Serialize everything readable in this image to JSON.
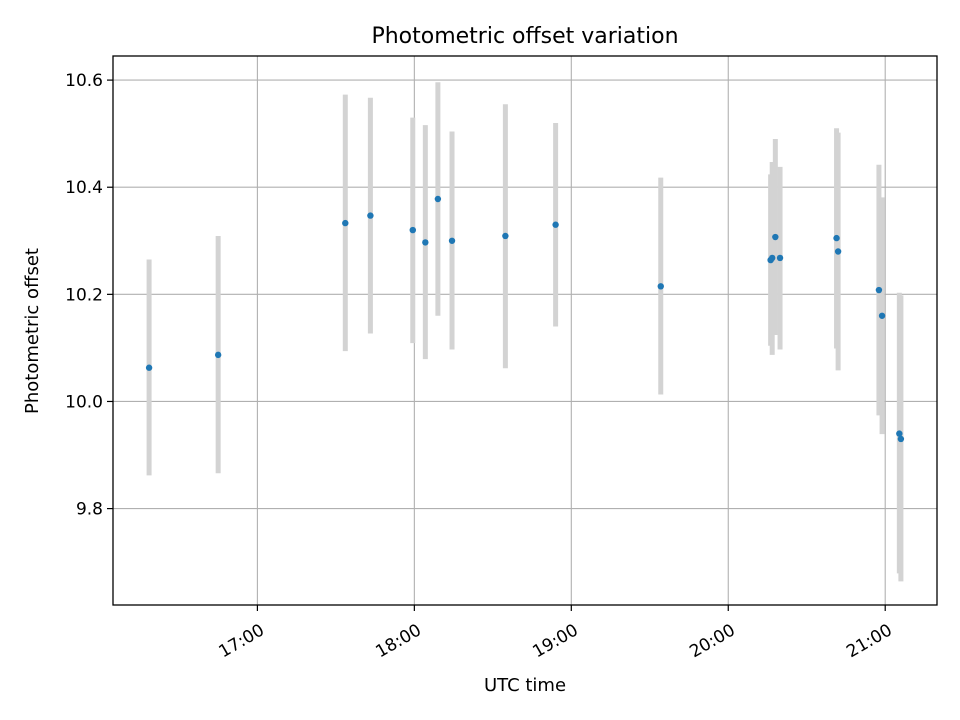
{
  "chart_data": {
    "type": "scatter",
    "title": "Photometric offset variation",
    "xlabel": "UTC time",
    "ylabel": "Photometric offset",
    "x_unit": "hours UTC",
    "xlim": [
      16.08,
      21.33
    ],
    "ylim": [
      9.62,
      10.645
    ],
    "x_ticks": [
      {
        "value": 17,
        "label": "17:00"
      },
      {
        "value": 18,
        "label": "18:00"
      },
      {
        "value": 19,
        "label": "19:00"
      },
      {
        "value": 20,
        "label": "20:00"
      },
      {
        "value": 21,
        "label": "21:00"
      }
    ],
    "y_ticks": [
      {
        "value": 9.8,
        "label": "9.8"
      },
      {
        "value": 10.0,
        "label": "10.0"
      },
      {
        "value": 10.2,
        "label": "10.2"
      },
      {
        "value": 10.4,
        "label": "10.4"
      },
      {
        "value": 10.6,
        "label": "10.6"
      }
    ],
    "grid": true,
    "point_color": "#1f77b4",
    "errorbar_color": "#d3d3d3",
    "points": [
      {
        "x": 16.31,
        "y": 10.063,
        "lo": 9.862,
        "hi": 10.265
      },
      {
        "x": 16.75,
        "y": 10.087,
        "lo": 9.866,
        "hi": 10.309
      },
      {
        "x": 17.56,
        "y": 10.333,
        "lo": 10.094,
        "hi": 10.573
      },
      {
        "x": 17.72,
        "y": 10.347,
        "lo": 10.127,
        "hi": 10.567
      },
      {
        "x": 17.99,
        "y": 10.32,
        "lo": 10.109,
        "hi": 10.53
      },
      {
        "x": 18.07,
        "y": 10.297,
        "lo": 10.079,
        "hi": 10.516
      },
      {
        "x": 18.15,
        "y": 10.378,
        "lo": 10.16,
        "hi": 10.596
      },
      {
        "x": 18.24,
        "y": 10.3,
        "lo": 10.097,
        "hi": 10.504
      },
      {
        "x": 18.58,
        "y": 10.309,
        "lo": 10.062,
        "hi": 10.555
      },
      {
        "x": 18.9,
        "y": 10.33,
        "lo": 10.14,
        "hi": 10.52
      },
      {
        "x": 19.57,
        "y": 10.215,
        "lo": 10.013,
        "hi": 10.418
      },
      {
        "x": 20.27,
        "y": 10.264,
        "lo": 10.104,
        "hi": 10.424
      },
      {
        "x": 20.28,
        "y": 10.268,
        "lo": 10.087,
        "hi": 10.447
      },
      {
        "x": 20.3,
        "y": 10.307,
        "lo": 10.124,
        "hi": 10.49
      },
      {
        "x": 20.33,
        "y": 10.268,
        "lo": 10.097,
        "hi": 10.438
      },
      {
        "x": 20.69,
        "y": 10.305,
        "lo": 10.099,
        "hi": 10.51
      },
      {
        "x": 20.7,
        "y": 10.28,
        "lo": 10.058,
        "hi": 10.502
      },
      {
        "x": 20.96,
        "y": 10.208,
        "lo": 9.974,
        "hi": 10.442
      },
      {
        "x": 20.98,
        "y": 10.16,
        "lo": 9.939,
        "hi": 10.381
      },
      {
        "x": 21.09,
        "y": 9.94,
        "lo": 9.679,
        "hi": 10.203
      },
      {
        "x": 21.1,
        "y": 9.93,
        "lo": 9.664,
        "hi": 10.198
      }
    ]
  }
}
